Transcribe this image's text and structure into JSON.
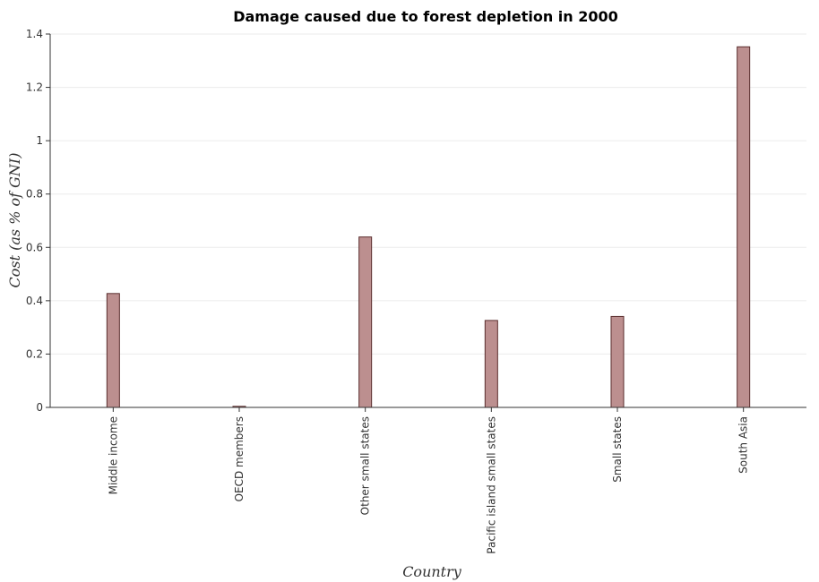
{
  "chart_data": {
    "type": "bar",
    "title": "Damage caused due to forest depletion in 2000",
    "xlabel": "Country",
    "ylabel": "Cost (as % of GNI)",
    "categories": [
      "Middle income",
      "OECD members",
      "Other small states",
      "Pacific island small states",
      "Small states",
      "South Asia"
    ],
    "values": [
      0.427,
      0.004,
      0.639,
      0.326,
      0.341,
      1.352
    ],
    "ylim": [
      0,
      1.4
    ],
    "yticks": [
      0,
      0.2,
      0.4,
      0.6,
      0.8,
      1,
      1.2,
      1.4
    ],
    "ytick_labels": [
      "0",
      "0.2",
      "0.4",
      "0.6",
      "0.8",
      "1",
      "1.2",
      "1.4"
    ],
    "grid": true,
    "bar_color": "#bc8f8f"
  }
}
